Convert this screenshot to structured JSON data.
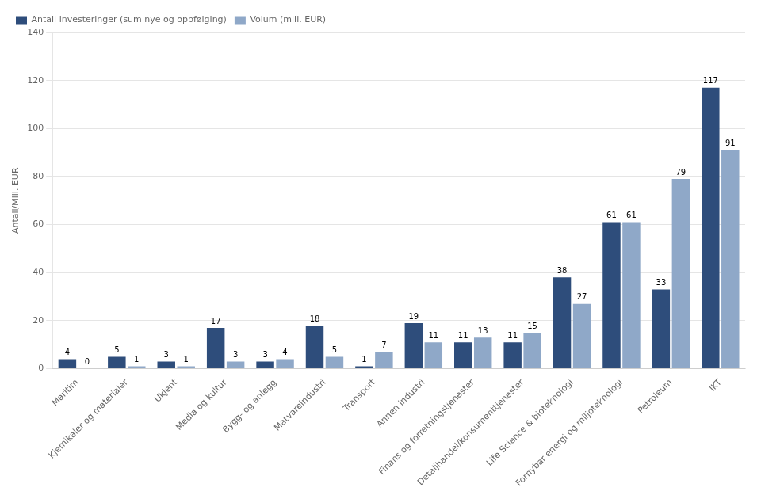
{
  "chart_data": {
    "type": "bar",
    "categories": [
      "Maritim",
      "Kjemikaler og materialer",
      "Ukjent",
      "Media og kultur",
      "Bygg- og anlegg",
      "Matvareindustri",
      "Transport",
      "Annen industri",
      "Finans og forretningstjenester",
      "Detaljhandel/konsumenttjenester",
      "Life Science & bioteknologi",
      "Fornybar energi og miljøteknologi",
      "Petroleum",
      "IKT"
    ],
    "series": [
      {
        "name": "Antall investeringer (sum nye og oppfølging)",
        "color": "#2E4D7B",
        "values": [
          4,
          5,
          3,
          17,
          3,
          18,
          1,
          19,
          11,
          11,
          38,
          61,
          33,
          117
        ]
      },
      {
        "name": "Volum (mill. EUR)",
        "color": "#8FA8C8",
        "values": [
          0,
          1,
          1,
          3,
          4,
          5,
          7,
          11,
          13,
          15,
          27,
          61,
          79,
          91
        ]
      }
    ],
    "ylabel": "Antall/Mill. EUR",
    "ylim": [
      0,
      140
    ],
    "yticks": [
      0,
      20,
      40,
      60,
      80,
      100,
      120,
      140
    ],
    "grid": "y",
    "legend": "upper left",
    "data_labels": true
  }
}
